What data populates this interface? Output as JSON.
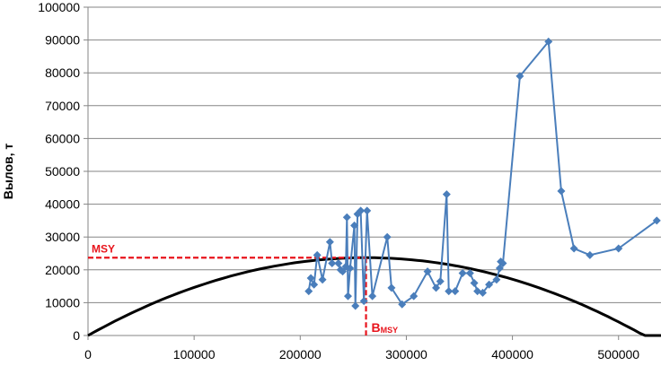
{
  "chart_data": {
    "type": "scatter",
    "title": "",
    "xlabel": "",
    "ylabel": "Вылов, т",
    "xlim": [
      0,
      540000
    ],
    "ylim": [
      0,
      100000
    ],
    "x_ticks": [
      "0",
      "100000",
      "200000",
      "300000",
      "400000",
      "500000"
    ],
    "y_ticks": [
      "0",
      "10000",
      "20000",
      "30000",
      "40000",
      "50000",
      "60000",
      "70000",
      "80000",
      "90000",
      "100000"
    ],
    "grid": "horizontal",
    "legend": "none",
    "colors": {
      "series": "#4a7ebb",
      "curve": "#000000",
      "reference": "#e8141c"
    },
    "series": [
      {
        "style": "line-with-markers",
        "marker": "diamond",
        "points": [
          [
            208000,
            13500
          ],
          [
            210000,
            17500
          ],
          [
            213000,
            15500
          ],
          [
            216000,
            24500
          ],
          [
            221000,
            17000
          ],
          [
            228000,
            28500
          ],
          [
            230000,
            22000
          ],
          [
            236000,
            22000
          ],
          [
            238000,
            20000
          ],
          [
            240000,
            19500
          ],
          [
            243000,
            21000
          ],
          [
            244000,
            36000
          ],
          [
            245000,
            12000
          ],
          [
            247000,
            20500
          ],
          [
            251000,
            33500
          ],
          [
            252000,
            9000
          ],
          [
            254000,
            37000
          ],
          [
            257000,
            38000
          ],
          [
            260000,
            10500
          ],
          [
            263000,
            38000
          ],
          [
            268000,
            12000
          ],
          [
            282000,
            30000
          ],
          [
            286000,
            14500
          ],
          [
            296000,
            9500
          ],
          [
            307000,
            12000
          ],
          [
            320000,
            19500
          ],
          [
            328000,
            14500
          ],
          [
            332000,
            16500
          ],
          [
            338000,
            43000
          ],
          [
            340000,
            13500
          ],
          [
            346000,
            13500
          ],
          [
            353000,
            19000
          ],
          [
            360000,
            19000
          ],
          [
            364000,
            16000
          ],
          [
            367000,
            13500
          ],
          [
            372000,
            13000
          ],
          [
            378000,
            15500
          ],
          [
            385000,
            17000
          ],
          [
            388000,
            20500
          ],
          [
            389000,
            22500
          ],
          [
            391000,
            22000
          ],
          [
            407000,
            79000
          ],
          [
            434000,
            89500
          ],
          [
            446000,
            44000
          ],
          [
            458000,
            26500
          ],
          [
            473000,
            24500
          ],
          [
            500000,
            26500
          ],
          [
            536000,
            35000
          ]
        ]
      },
      {
        "style": "smooth-line",
        "curve": "parabola",
        "vertex": [
          262000,
          23700
        ],
        "x_range": [
          0,
          540000
        ]
      }
    ],
    "reference_lines": {
      "msy_value": 23700,
      "bmsy_value": 262000
    },
    "annotations": {
      "msy_label": "MSY",
      "bmsy_main": "B",
      "bmsy_sub": "MSY"
    }
  }
}
